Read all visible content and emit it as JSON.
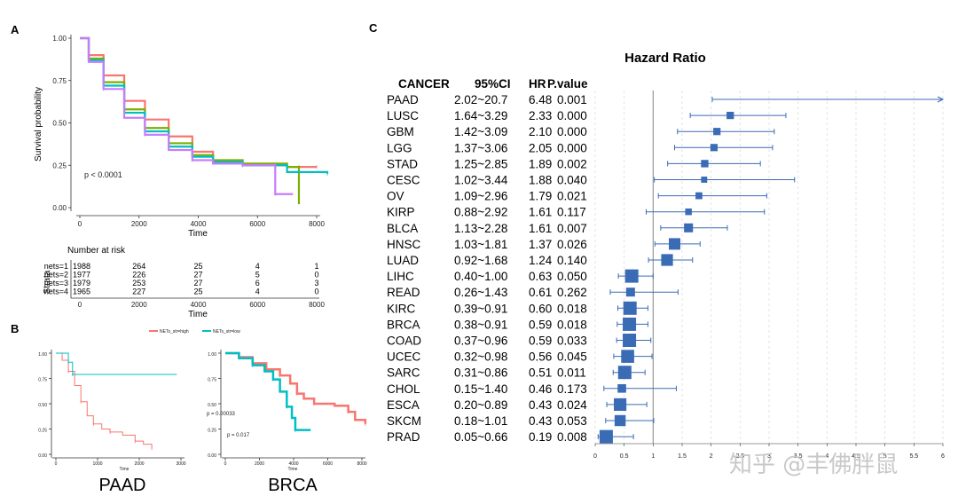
{
  "panels": {
    "A": "A",
    "B": "B",
    "C": "C"
  },
  "watermark": "知乎 @丰佛胖鼠",
  "chart_data": [
    {
      "id": "A",
      "type": "line",
      "title": "",
      "xlabel": "Time",
      "ylabel": "Survival probability",
      "xlim": [
        0,
        8000
      ],
      "ylim": [
        0,
        1
      ],
      "xticks": [
        "0",
        "2000",
        "4000",
        "6000",
        "8000"
      ],
      "yticks": [
        "0.00",
        "0.25",
        "0.50",
        "0.75",
        "1.00"
      ],
      "annotation": "p < 0.0001",
      "series": [
        {
          "name": "nets=1",
          "color": "#f8766d",
          "points": [
            [
              0,
              1
            ],
            [
              300,
              0.9
            ],
            [
              800,
              0.78
            ],
            [
              1500,
              0.63
            ],
            [
              2200,
              0.52
            ],
            [
              3000,
              0.42
            ],
            [
              3800,
              0.33
            ],
            [
              4500,
              0.27
            ],
            [
              5500,
              0.25
            ],
            [
              7000,
              0.24
            ],
            [
              8000,
              0.24
            ]
          ]
        },
        {
          "name": "nets=2",
          "color": "#7cae00",
          "points": [
            [
              0,
              1
            ],
            [
              300,
              0.88
            ],
            [
              800,
              0.74
            ],
            [
              1500,
              0.58
            ],
            [
              2200,
              0.47
            ],
            [
              3000,
              0.38
            ],
            [
              3800,
              0.31
            ],
            [
              4500,
              0.28
            ],
            [
              5500,
              0.26
            ],
            [
              7000,
              0.24
            ],
            [
              7400,
              0.24
            ],
            [
              7400,
              0.02
            ]
          ]
        },
        {
          "name": "nets=3",
          "color": "#00bfc4",
          "points": [
            [
              0,
              1
            ],
            [
              300,
              0.87
            ],
            [
              800,
              0.72
            ],
            [
              1500,
              0.56
            ],
            [
              2200,
              0.45
            ],
            [
              3000,
              0.36
            ],
            [
              3800,
              0.3
            ],
            [
              4500,
              0.27
            ],
            [
              5500,
              0.25
            ],
            [
              7000,
              0.21
            ],
            [
              8500,
              0.2
            ]
          ]
        },
        {
          "name": "nets=4",
          "color": "#c77cff",
          "points": [
            [
              0,
              1
            ],
            [
              300,
              0.86
            ],
            [
              800,
              0.7
            ],
            [
              1500,
              0.53
            ],
            [
              2200,
              0.43
            ],
            [
              3000,
              0.34
            ],
            [
              3800,
              0.28
            ],
            [
              4500,
              0.26
            ],
            [
              5500,
              0.25
            ],
            [
              6600,
              0.22
            ],
            [
              6600,
              0.08
            ],
            [
              7200,
              0.08
            ]
          ]
        }
      ],
      "risk_table": {
        "title": "Number at risk",
        "strata_label": "Strata",
        "xlabel": "Time",
        "times": [
          "0",
          "2000",
          "4000",
          "6000",
          "8000"
        ],
        "rows": [
          {
            "name": "nets=1",
            "color": "#f8766d",
            "values": [
              "1988",
              "264",
              "25",
              "4",
              "1"
            ]
          },
          {
            "name": "nets=2",
            "color": "#7cae00",
            "values": [
              "1977",
              "226",
              "27",
              "5",
              "0"
            ]
          },
          {
            "name": "nets=3",
            "color": "#00bfc4",
            "values": [
              "1979",
              "253",
              "27",
              "6",
              "3"
            ]
          },
          {
            "name": "nets=4",
            "color": "#c77cff",
            "values": [
              "1965",
              "227",
              "25",
              "4",
              "0"
            ]
          }
        ]
      }
    },
    {
      "id": "B-PAAD",
      "type": "line",
      "title": "PAAD",
      "xlabel": "Time",
      "ylabel": "",
      "xlim": [
        0,
        3000
      ],
      "ylim": [
        0,
        1
      ],
      "xticks": [
        "0",
        "1000",
        "2000",
        "3000"
      ],
      "yticks": [
        "0.00",
        "0.25",
        "0.50",
        "0.75",
        "1.00"
      ],
      "annotation": "p = 0.00033",
      "legend": [
        {
          "name": "NETs_str=high",
          "color": "#f8766d"
        },
        {
          "name": "NETs_str=low",
          "color": "#00bfc4"
        }
      ],
      "series": [
        {
          "name": "NETs_str=high",
          "color": "#f8766d",
          "points": [
            [
              0,
              1
            ],
            [
              150,
              0.93
            ],
            [
              300,
              0.82
            ],
            [
              450,
              0.68
            ],
            [
              600,
              0.52
            ],
            [
              750,
              0.38
            ],
            [
              900,
              0.3
            ],
            [
              1100,
              0.25
            ],
            [
              1300,
              0.22
            ],
            [
              1600,
              0.19
            ],
            [
              1900,
              0.13
            ],
            [
              2100,
              0.1
            ],
            [
              2300,
              0.06
            ]
          ]
        },
        {
          "name": "NETs_str=low",
          "color": "#00bfc4",
          "points": [
            [
              0,
              1
            ],
            [
              300,
              1
            ],
            [
              300,
              0.91
            ],
            [
              400,
              0.91
            ],
            [
              400,
              0.79
            ],
            [
              2900,
              0.79
            ]
          ]
        }
      ]
    },
    {
      "id": "B-BRCA",
      "type": "line",
      "title": "BRCA",
      "xlabel": "Time",
      "ylabel": "",
      "xlim": [
        0,
        8000
      ],
      "ylim": [
        0,
        1
      ],
      "xticks": [
        "0",
        "2000",
        "4000",
        "6000",
        "8000"
      ],
      "yticks": [
        "0.00",
        "0.25",
        "0.50",
        "0.75",
        "1.00"
      ],
      "annotation": "p = 0.017",
      "series": [
        {
          "name": "NETs_str=high",
          "color": "#f8766d",
          "points": [
            [
              0,
              1
            ],
            [
              800,
              0.96
            ],
            [
              1600,
              0.9
            ],
            [
              2400,
              0.84
            ],
            [
              3200,
              0.78
            ],
            [
              3800,
              0.7
            ],
            [
              4200,
              0.6
            ],
            [
              4600,
              0.55
            ],
            [
              5200,
              0.5
            ],
            [
              6400,
              0.48
            ],
            [
              7200,
              0.42
            ],
            [
              7600,
              0.34
            ],
            [
              8200,
              0.3
            ]
          ]
        },
        {
          "name": "NETs_str=low",
          "color": "#00bfc4",
          "points": [
            [
              0,
              1
            ],
            [
              800,
              0.95
            ],
            [
              1600,
              0.88
            ],
            [
              2300,
              0.82
            ],
            [
              2800,
              0.74
            ],
            [
              3200,
              0.62
            ],
            [
              3600,
              0.47
            ],
            [
              3900,
              0.36
            ],
            [
              4100,
              0.24
            ],
            [
              5000,
              0.24
            ]
          ]
        }
      ]
    },
    {
      "id": "C",
      "type": "scatter",
      "title": "Hazard Ratio",
      "xlabel": "",
      "ylabel": "",
      "xlim": [
        0,
        6
      ],
      "xticks": [
        "0",
        "0.5",
        "1",
        "1.5",
        "2",
        "2.5",
        "3",
        "3.5",
        "4",
        "4.5",
        "5",
        "5.5",
        "6"
      ],
      "reference_line": 1,
      "columns": [
        "CANCER",
        "95%CI",
        "HR",
        "P.value"
      ],
      "rows": [
        {
          "cancer": "PAAD",
          "ci": "2.02~20.7",
          "hr": "6.48",
          "p": "0.001",
          "hr_v": 6.48,
          "lo": 2.02,
          "hi": 20.7
        },
        {
          "cancer": "LUSC",
          "ci": "1.64~3.29",
          "hr": "2.33",
          "p": "0.000",
          "hr_v": 2.33,
          "lo": 1.64,
          "hi": 3.29
        },
        {
          "cancer": "GBM",
          "ci": "1.42~3.09",
          "hr": "2.10",
          "p": "0.000",
          "hr_v": 2.1,
          "lo": 1.42,
          "hi": 3.09
        },
        {
          "cancer": "LGG",
          "ci": "1.37~3.06",
          "hr": "2.05",
          "p": "0.000",
          "hr_v": 2.05,
          "lo": 1.37,
          "hi": 3.06
        },
        {
          "cancer": "STAD",
          "ci": "1.25~2.85",
          "hr": "1.89",
          "p": "0.002",
          "hr_v": 1.89,
          "lo": 1.25,
          "hi": 2.85
        },
        {
          "cancer": "CESC",
          "ci": "1.02~3.44",
          "hr": "1.88",
          "p": "0.040",
          "hr_v": 1.88,
          "lo": 1.02,
          "hi": 3.44
        },
        {
          "cancer": "OV",
          "ci": "1.09~2.96",
          "hr": "1.79",
          "p": "0.021",
          "hr_v": 1.79,
          "lo": 1.09,
          "hi": 2.96
        },
        {
          "cancer": "KIRP",
          "ci": "0.88~2.92",
          "hr": "1.61",
          "p": "0.117",
          "hr_v": 1.61,
          "lo": 0.88,
          "hi": 2.92
        },
        {
          "cancer": "BLCA",
          "ci": "1.13~2.28",
          "hr": "1.61",
          "p": "0.007",
          "hr_v": 1.61,
          "lo": 1.13,
          "hi": 2.28
        },
        {
          "cancer": "HNSC",
          "ci": "1.03~1.81",
          "hr": "1.37",
          "p": "0.026",
          "hr_v": 1.37,
          "lo": 1.03,
          "hi": 1.81
        },
        {
          "cancer": "LUAD",
          "ci": "0.92~1.68",
          "hr": "1.24",
          "p": "0.140",
          "hr_v": 1.24,
          "lo": 0.92,
          "hi": 1.68
        },
        {
          "cancer": "LIHC",
          "ci": "0.40~1.00",
          "hr": "0.63",
          "p": "0.050",
          "hr_v": 0.63,
          "lo": 0.4,
          "hi": 1.0
        },
        {
          "cancer": "READ",
          "ci": "0.26~1.43",
          "hr": "0.61",
          "p": "0.262",
          "hr_v": 0.61,
          "lo": 0.26,
          "hi": 1.43
        },
        {
          "cancer": "KIRC",
          "ci": "0.39~0.91",
          "hr": "0.60",
          "p": "0.018",
          "hr_v": 0.6,
          "lo": 0.39,
          "hi": 0.91
        },
        {
          "cancer": "BRCA",
          "ci": "0.38~0.91",
          "hr": "0.59",
          "p": "0.018",
          "hr_v": 0.59,
          "lo": 0.38,
          "hi": 0.91
        },
        {
          "cancer": "COAD",
          "ci": "0.37~0.96",
          "hr": "0.59",
          "p": "0.033",
          "hr_v": 0.59,
          "lo": 0.37,
          "hi": 0.96
        },
        {
          "cancer": "UCEC",
          "ci": "0.32~0.98",
          "hr": "0.56",
          "p": "0.045",
          "hr_v": 0.56,
          "lo": 0.32,
          "hi": 0.98
        },
        {
          "cancer": "SARC",
          "ci": "0.31~0.86",
          "hr": "0.51",
          "p": "0.011",
          "hr_v": 0.51,
          "lo": 0.31,
          "hi": 0.86
        },
        {
          "cancer": "CHOL",
          "ci": "0.15~1.40",
          "hr": "0.46",
          "p": "0.173",
          "hr_v": 0.46,
          "lo": 0.15,
          "hi": 1.4
        },
        {
          "cancer": "ESCA",
          "ci": "0.20~0.89",
          "hr": "0.43",
          "p": "0.024",
          "hr_v": 0.43,
          "lo": 0.2,
          "hi": 0.89
        },
        {
          "cancer": "SKCM",
          "ci": "0.18~1.01",
          "hr": "0.43",
          "p": "0.053",
          "hr_v": 0.43,
          "lo": 0.18,
          "hi": 1.01
        },
        {
          "cancer": "PRAD",
          "ci": "0.05~0.66",
          "hr": "0.19",
          "p": "0.008",
          "hr_v": 0.19,
          "lo": 0.05,
          "hi": 0.66
        }
      ],
      "marker_color": "#3a6bb5"
    }
  ]
}
